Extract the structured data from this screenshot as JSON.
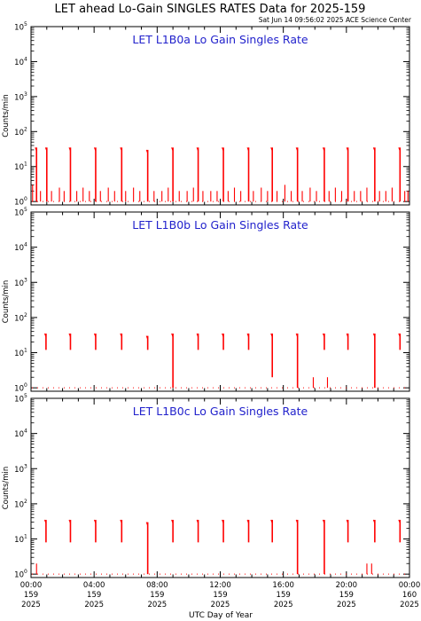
{
  "header": {
    "title": "LET ahead Lo-Gain SINGLES RATES Data for 2025-159",
    "subtitle": "Sat Jun 14 09:56:02 2025 ACE Science Center"
  },
  "axes": {
    "ylabel": "Counts/min",
    "xlabel": "UTC Day of Year",
    "y_tick_base": "10",
    "y_tick_exponents": [
      "0",
      "1",
      "2",
      "3",
      "4",
      "5"
    ],
    "x_ticks": [
      {
        "hour": 0,
        "time": "00:00",
        "doy": "159",
        "year": "2025"
      },
      {
        "hour": 4,
        "time": "04:00",
        "doy": "159",
        "year": "2025"
      },
      {
        "hour": 8,
        "time": "08:00",
        "doy": "159",
        "year": "2025"
      },
      {
        "hour": 12,
        "time": "12:00",
        "doy": "159",
        "year": "2025"
      },
      {
        "hour": 16,
        "time": "16:00",
        "doy": "159",
        "year": "2025"
      },
      {
        "hour": 20,
        "time": "20:00",
        "doy": "159",
        "year": "2025"
      },
      {
        "hour": 24,
        "time": "00:00",
        "doy": "160",
        "year": "2025"
      }
    ]
  },
  "chart_data": [
    {
      "type": "line",
      "title": "LET L1B0a Lo Gain Singles Rate",
      "ylabel": "Counts/min",
      "xlabel": "UTC Day of Year",
      "yscale": "log",
      "ylim": [
        0.8,
        100000
      ],
      "xlim": [
        0,
        24
      ],
      "color": "#ff0000",
      "bursts": [
        {
          "x": 0.35,
          "ymin": 1.0,
          "ymax": 35
        },
        {
          "x": 1.0,
          "ymin": 1.0,
          "ymax": 35
        },
        {
          "x": 2.5,
          "ymin": 1.0,
          "ymax": 35
        },
        {
          "x": 4.1,
          "ymin": 1.0,
          "ymax": 35
        },
        {
          "x": 5.75,
          "ymin": 1.0,
          "ymax": 35
        },
        {
          "x": 7.4,
          "ymin": 1.0,
          "ymax": 30
        },
        {
          "x": 9.0,
          "ymin": 1.0,
          "ymax": 35
        },
        {
          "x": 10.6,
          "ymin": 1.0,
          "ymax": 35
        },
        {
          "x": 12.2,
          "ymin": 1.0,
          "ymax": 35
        },
        {
          "x": 13.8,
          "ymin": 1.0,
          "ymax": 35
        },
        {
          "x": 15.3,
          "ymin": 1.0,
          "ymax": 35
        },
        {
          "x": 16.9,
          "ymin": 1.0,
          "ymax": 35
        },
        {
          "x": 18.6,
          "ymin": 1.0,
          "ymax": 35
        },
        {
          "x": 20.1,
          "ymin": 1.0,
          "ymax": 35
        },
        {
          "x": 21.8,
          "ymin": 1.0,
          "ymax": 35
        },
        {
          "x": 23.4,
          "ymin": 1.0,
          "ymax": 35
        }
      ],
      "spikes": [
        {
          "x": 0.1,
          "y": 3
        },
        {
          "x": 0.6,
          "y": 2
        },
        {
          "x": 1.3,
          "y": 2
        },
        {
          "x": 1.8,
          "y": 2.5
        },
        {
          "x": 2.1,
          "y": 2
        },
        {
          "x": 2.9,
          "y": 2
        },
        {
          "x": 3.3,
          "y": 2.5
        },
        {
          "x": 3.7,
          "y": 2
        },
        {
          "x": 4.4,
          "y": 2
        },
        {
          "x": 4.9,
          "y": 2.5
        },
        {
          "x": 5.3,
          "y": 2
        },
        {
          "x": 6.0,
          "y": 2
        },
        {
          "x": 6.5,
          "y": 2.5
        },
        {
          "x": 6.9,
          "y": 2
        },
        {
          "x": 7.8,
          "y": 2
        },
        {
          "x": 8.3,
          "y": 2
        },
        {
          "x": 8.7,
          "y": 2.5
        },
        {
          "x": 9.4,
          "y": 2
        },
        {
          "x": 9.9,
          "y": 2
        },
        {
          "x": 10.3,
          "y": 2.5
        },
        {
          "x": 10.9,
          "y": 2
        },
        {
          "x": 11.4,
          "y": 2
        },
        {
          "x": 11.8,
          "y": 2
        },
        {
          "x": 12.5,
          "y": 2
        },
        {
          "x": 12.9,
          "y": 2.5
        },
        {
          "x": 13.3,
          "y": 2
        },
        {
          "x": 14.1,
          "y": 2
        },
        {
          "x": 14.6,
          "y": 2.5
        },
        {
          "x": 15.0,
          "y": 2
        },
        {
          "x": 15.6,
          "y": 2
        },
        {
          "x": 16.1,
          "y": 3
        },
        {
          "x": 16.5,
          "y": 2
        },
        {
          "x": 17.2,
          "y": 2
        },
        {
          "x": 17.7,
          "y": 2.5
        },
        {
          "x": 18.1,
          "y": 2
        },
        {
          "x": 18.9,
          "y": 2
        },
        {
          "x": 19.3,
          "y": 2.5
        },
        {
          "x": 19.7,
          "y": 2
        },
        {
          "x": 20.5,
          "y": 2
        },
        {
          "x": 20.9,
          "y": 2
        },
        {
          "x": 21.3,
          "y": 2.5
        },
        {
          "x": 22.1,
          "y": 2
        },
        {
          "x": 22.5,
          "y": 2
        },
        {
          "x": 22.9,
          "y": 2.5
        },
        {
          "x": 23.7,
          "y": 2
        },
        {
          "x": 23.9,
          "y": 2
        }
      ],
      "baseline": 1.0
    },
    {
      "type": "line",
      "title": "LET L1B0b Lo Gain Singles Rate",
      "ylabel": "Counts/min",
      "xlabel": "UTC Day of Year",
      "yscale": "log",
      "ylim": [
        0.8,
        100000
      ],
      "xlim": [
        0,
        24
      ],
      "color": "#ff0000",
      "bursts": [
        {
          "x": 0.95,
          "ymin": 12,
          "ymax": 35
        },
        {
          "x": 2.5,
          "ymin": 12,
          "ymax": 35
        },
        {
          "x": 4.1,
          "ymin": 12,
          "ymax": 35
        },
        {
          "x": 5.75,
          "ymin": 12,
          "ymax": 35
        },
        {
          "x": 7.4,
          "ymin": 12,
          "ymax": 30
        },
        {
          "x": 9.0,
          "ymin": 1.0,
          "ymax": 35
        },
        {
          "x": 10.6,
          "ymin": 12,
          "ymax": 35
        },
        {
          "x": 12.2,
          "ymin": 12,
          "ymax": 35
        },
        {
          "x": 13.8,
          "ymin": 12,
          "ymax": 35
        },
        {
          "x": 15.3,
          "ymin": 2,
          "ymax": 35
        },
        {
          "x": 16.9,
          "ymin": 1.0,
          "ymax": 35
        },
        {
          "x": 18.6,
          "ymin": 12,
          "ymax": 35
        },
        {
          "x": 20.1,
          "ymin": 12,
          "ymax": 35
        },
        {
          "x": 21.8,
          "ymin": 1.0,
          "ymax": 35
        },
        {
          "x": 23.4,
          "ymin": 12,
          "ymax": 35
        }
      ],
      "spikes": [
        {
          "x": 17.9,
          "y": 2
        },
        {
          "x": 18.8,
          "y": 2
        }
      ],
      "baseline": 1.0
    },
    {
      "type": "line",
      "title": "LET L1B0c Lo Gain Singles Rate",
      "ylabel": "Counts/min",
      "xlabel": "UTC Day of Year",
      "yscale": "log",
      "ylim": [
        0.8,
        100000
      ],
      "xlim": [
        0,
        24
      ],
      "color": "#ff0000",
      "bursts": [
        {
          "x": 0.95,
          "ymin": 8,
          "ymax": 35
        },
        {
          "x": 2.5,
          "ymin": 8,
          "ymax": 35
        },
        {
          "x": 4.1,
          "ymin": 8,
          "ymax": 35
        },
        {
          "x": 5.75,
          "ymin": 8,
          "ymax": 35
        },
        {
          "x": 7.4,
          "ymin": 1.0,
          "ymax": 30
        },
        {
          "x": 9.0,
          "ymin": 8,
          "ymax": 35
        },
        {
          "x": 10.6,
          "ymin": 8,
          "ymax": 35
        },
        {
          "x": 12.2,
          "ymin": 8,
          "ymax": 35
        },
        {
          "x": 13.8,
          "ymin": 8,
          "ymax": 35
        },
        {
          "x": 15.3,
          "ymin": 8,
          "ymax": 35
        },
        {
          "x": 16.9,
          "ymin": 1.0,
          "ymax": 35
        },
        {
          "x": 18.6,
          "ymin": 1.0,
          "ymax": 35
        },
        {
          "x": 20.1,
          "ymin": 8,
          "ymax": 35
        },
        {
          "x": 21.8,
          "ymin": 8,
          "ymax": 35
        },
        {
          "x": 23.4,
          "ymin": 8,
          "ymax": 35
        }
      ],
      "spikes": [
        {
          "x": 0.35,
          "y": 2
        },
        {
          "x": 21.3,
          "y": 2
        },
        {
          "x": 21.6,
          "y": 2
        }
      ],
      "baseline": 1.0
    }
  ]
}
